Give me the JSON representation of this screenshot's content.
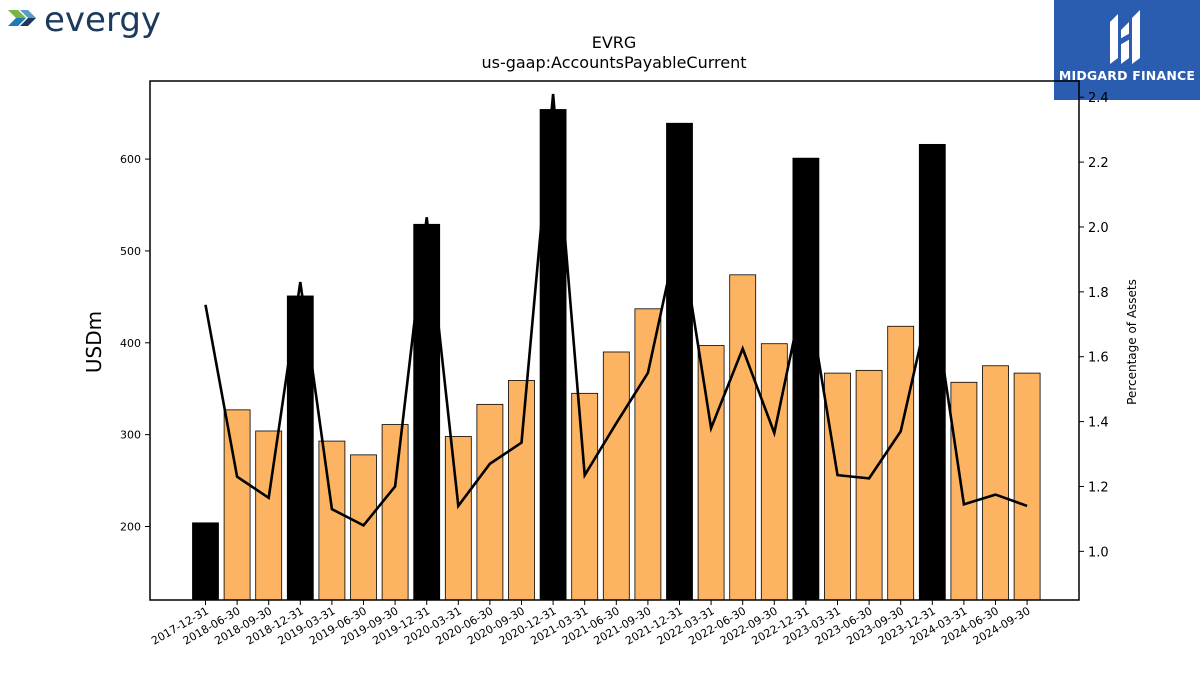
{
  "logos": {
    "left_text": "evergy",
    "right_text": "MIDGARD FINANCE"
  },
  "colors": {
    "bar_black": "#000000",
    "bar_orange": "#fdb462",
    "line": "#000000",
    "logo_text": "#1b3a5c",
    "logo_green": "#7cb342",
    "logo_blue": "#1f7ab8",
    "right_logo_bg": "#2a5db0"
  },
  "chart_data": {
    "type": "bar",
    "title": "EVRG",
    "subtitle": "us-gaap:AccountsPayableCurrent",
    "ylabel": "USDm",
    "y2label": "Percentage of Assets",
    "ylim": [
      120,
      685
    ],
    "y2lim": [
      0.85,
      2.45
    ],
    "yticks": [
      200,
      300,
      400,
      500,
      600
    ],
    "y2ticks": [
      1.0,
      1.2,
      1.4,
      1.6,
      1.8,
      2.0,
      2.2,
      2.4
    ],
    "categories": [
      "2017-12-31",
      "2018-06-30",
      "2018-09-30",
      "2018-12-31",
      "2019-03-31",
      "2019-06-30",
      "2019-09-30",
      "2019-12-31",
      "2020-03-31",
      "2020-06-30",
      "2020-09-30",
      "2020-12-31",
      "2021-03-31",
      "2021-06-30",
      "2021-09-30",
      "2021-12-31",
      "2022-03-31",
      "2022-06-30",
      "2022-09-30",
      "2022-12-31",
      "2023-03-31",
      "2023-06-30",
      "2023-09-30",
      "2023-12-31",
      "2024-03-31",
      "2024-06-30",
      "2024-09-30"
    ],
    "series": [
      {
        "type": "bar",
        "values": [
          204,
          327,
          304,
          451,
          293,
          278,
          311,
          529,
          298,
          333,
          359,
          654,
          345,
          390,
          437,
          639,
          397,
          474,
          399,
          601,
          367,
          370,
          418,
          616,
          357,
          375,
          367
        ],
        "year_end": [
          true,
          false,
          false,
          true,
          false,
          false,
          false,
          true,
          false,
          false,
          false,
          true,
          false,
          false,
          false,
          true,
          false,
          false,
          false,
          true,
          false,
          false,
          false,
          true,
          false,
          false,
          false
        ]
      },
      {
        "type": "line",
        "axis": "right",
        "values": [
          1.76,
          1.23,
          1.165,
          1.83,
          1.13,
          1.08,
          1.2,
          2.03,
          1.14,
          1.27,
          1.335,
          2.41,
          1.235,
          1.395,
          1.55,
          2.0,
          1.38,
          1.625,
          1.365,
          1.83,
          1.235,
          1.225,
          1.37,
          1.8,
          1.145,
          1.175,
          1.14
        ]
      }
    ]
  }
}
